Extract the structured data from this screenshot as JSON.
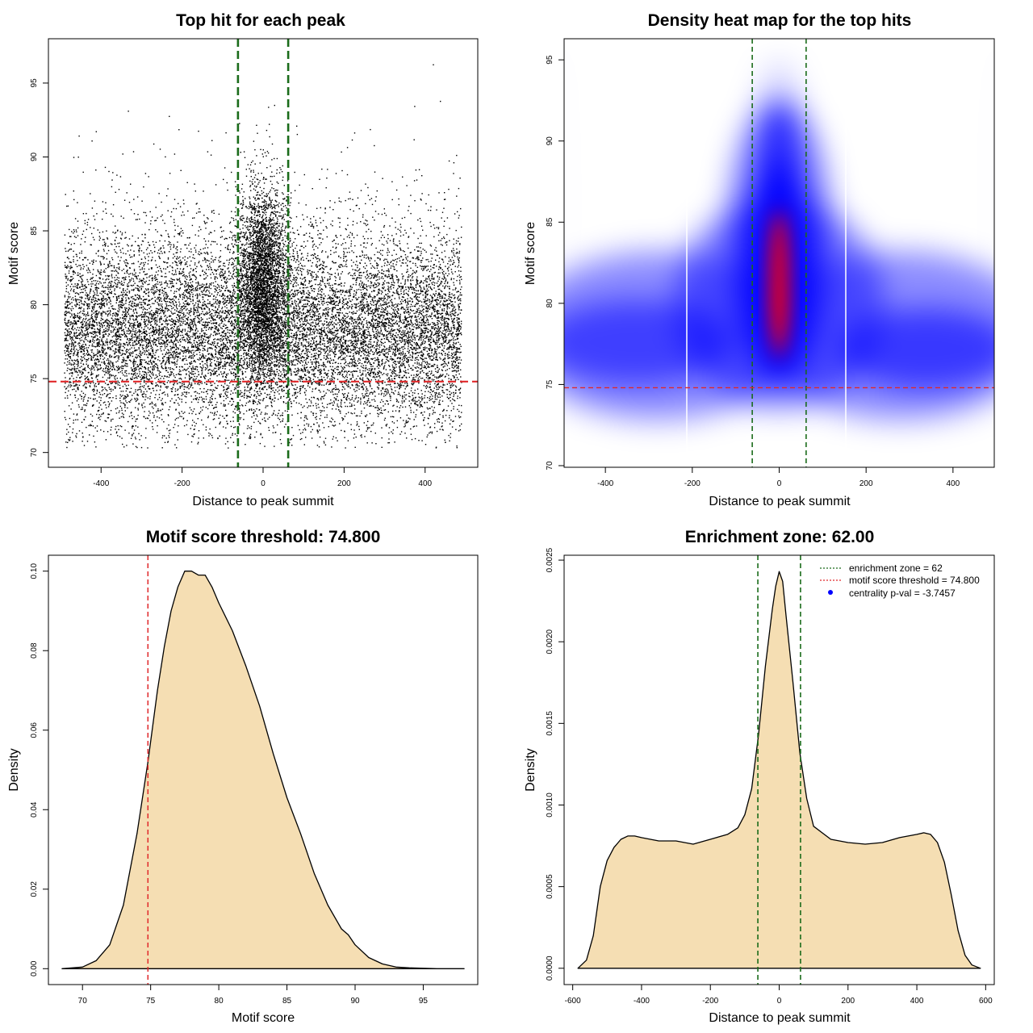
{
  "colors": {
    "zone_line": "#1a6b1a",
    "threshold_line": "#e0282a",
    "density_fill": "#f5deb3",
    "heat_low": "#ffffff",
    "heat_mid": "#0000ff",
    "heat_high": "#ff0000"
  },
  "chart_data": [
    {
      "type": "scatter",
      "title": "Top hit for each peak",
      "xlabel": "Distance to peak summit",
      "ylabel": "Motif score",
      "xlim": [
        -530,
        530
      ],
      "ylim": [
        69,
        98
      ],
      "xticks": [
        "-400",
        "-200",
        "0",
        "200",
        "400"
      ],
      "yticks": [
        "70",
        "75",
        "80",
        "85",
        "90",
        "95"
      ],
      "threshold": 74.8,
      "enrichment_zone": [
        -62,
        62
      ],
      "approx_point_count": 18000,
      "grid": false
    },
    {
      "type": "heatmap",
      "title": "Density heat map for the top hits",
      "xlabel": "Distance to peak summit",
      "ylabel": "Motif score",
      "xlim": [
        -495,
        495
      ],
      "ylim": [
        69.9,
        96.3
      ],
      "xticks": [
        "-400",
        "-200",
        "0",
        "200",
        "400"
      ],
      "yticks": [
        "70",
        "75",
        "80",
        "85",
        "90",
        "95"
      ],
      "threshold": 74.8,
      "enrichment_zone": [
        -62,
        62
      ],
      "density_peak": {
        "x": 0,
        "y": 80
      },
      "grid": false
    },
    {
      "type": "area",
      "title": "Motif score threshold: 74.800",
      "xlabel": "Motif score",
      "ylabel": "Density",
      "xlim": [
        67.5,
        99
      ],
      "ylim": [
        -0.004,
        0.104
      ],
      "xticks": [
        "70",
        "75",
        "80",
        "85",
        "90",
        "95"
      ],
      "yticks": [
        "0.00",
        "0.02",
        "0.04",
        "0.06",
        "0.08",
        "0.10"
      ],
      "threshold": 74.8,
      "x": [
        68.5,
        70,
        71,
        72,
        73,
        74,
        74.8,
        75.5,
        76,
        76.5,
        77,
        77.5,
        78,
        78.5,
        79,
        79.5,
        80,
        81,
        82,
        83,
        84,
        85,
        86,
        87,
        88,
        89,
        89.5,
        90,
        91,
        92,
        93,
        94,
        95,
        96,
        97,
        98
      ],
      "y": [
        0.0,
        0.0004,
        0.002,
        0.006,
        0.016,
        0.034,
        0.052,
        0.07,
        0.081,
        0.09,
        0.096,
        0.1,
        0.1,
        0.099,
        0.099,
        0.096,
        0.092,
        0.085,
        0.076,
        0.066,
        0.054,
        0.043,
        0.034,
        0.024,
        0.016,
        0.01,
        0.0085,
        0.006,
        0.0028,
        0.0012,
        0.0004,
        0.0002,
        0.0001,
        0.0,
        0.0,
        0.0
      ],
      "grid": false
    },
    {
      "type": "area",
      "title": "Enrichment zone: 62.00",
      "xlabel": "Distance to peak summit",
      "ylabel": "Density",
      "xlim": [
        -625,
        625
      ],
      "ylim": [
        -0.0001,
        0.00253
      ],
      "xticks": [
        "-600",
        "-400",
        "-200",
        "0",
        "200",
        "400",
        "600"
      ],
      "yticks": [
        "0.0000",
        "0.0005",
        "0.0010",
        "0.0015",
        "0.0020",
        "0.0025"
      ],
      "enrichment_zone": [
        -62,
        62
      ],
      "x": [
        -585,
        -560,
        -540,
        -520,
        -500,
        -480,
        -460,
        -440,
        -420,
        -400,
        -350,
        -300,
        -250,
        -200,
        -150,
        -120,
        -100,
        -80,
        -60,
        -40,
        -20,
        -10,
        0,
        10,
        20,
        40,
        60,
        80,
        100,
        150,
        200,
        250,
        300,
        350,
        400,
        420,
        440,
        460,
        480,
        500,
        520,
        540,
        560,
        585
      ],
      "y": [
        0.0,
        5e-05,
        0.0002,
        0.0005,
        0.00066,
        0.00074,
        0.00079,
        0.00081,
        0.00081,
        0.0008,
        0.00078,
        0.00078,
        0.00076,
        0.00079,
        0.00082,
        0.00086,
        0.00094,
        0.0011,
        0.00143,
        0.00185,
        0.0022,
        0.00234,
        0.00243,
        0.00237,
        0.00216,
        0.00175,
        0.00132,
        0.00104,
        0.00087,
        0.00079,
        0.00077,
        0.00076,
        0.00077,
        0.0008,
        0.00082,
        0.00083,
        0.00082,
        0.00077,
        0.00065,
        0.00045,
        0.00023,
        8e-05,
        2e-05,
        0.0
      ],
      "legend": [
        {
          "text": "enrichment zone = 62",
          "style": "dotted",
          "color": "#1a6b1a"
        },
        {
          "text": "motif score threshold = 74.800",
          "style": "dotted",
          "color": "#e0282a"
        },
        {
          "text": "centrality p-val = -3.7457",
          "style": "point",
          "color": "#0000ff"
        }
      ],
      "legend_position": "top-right",
      "grid": false
    }
  ]
}
